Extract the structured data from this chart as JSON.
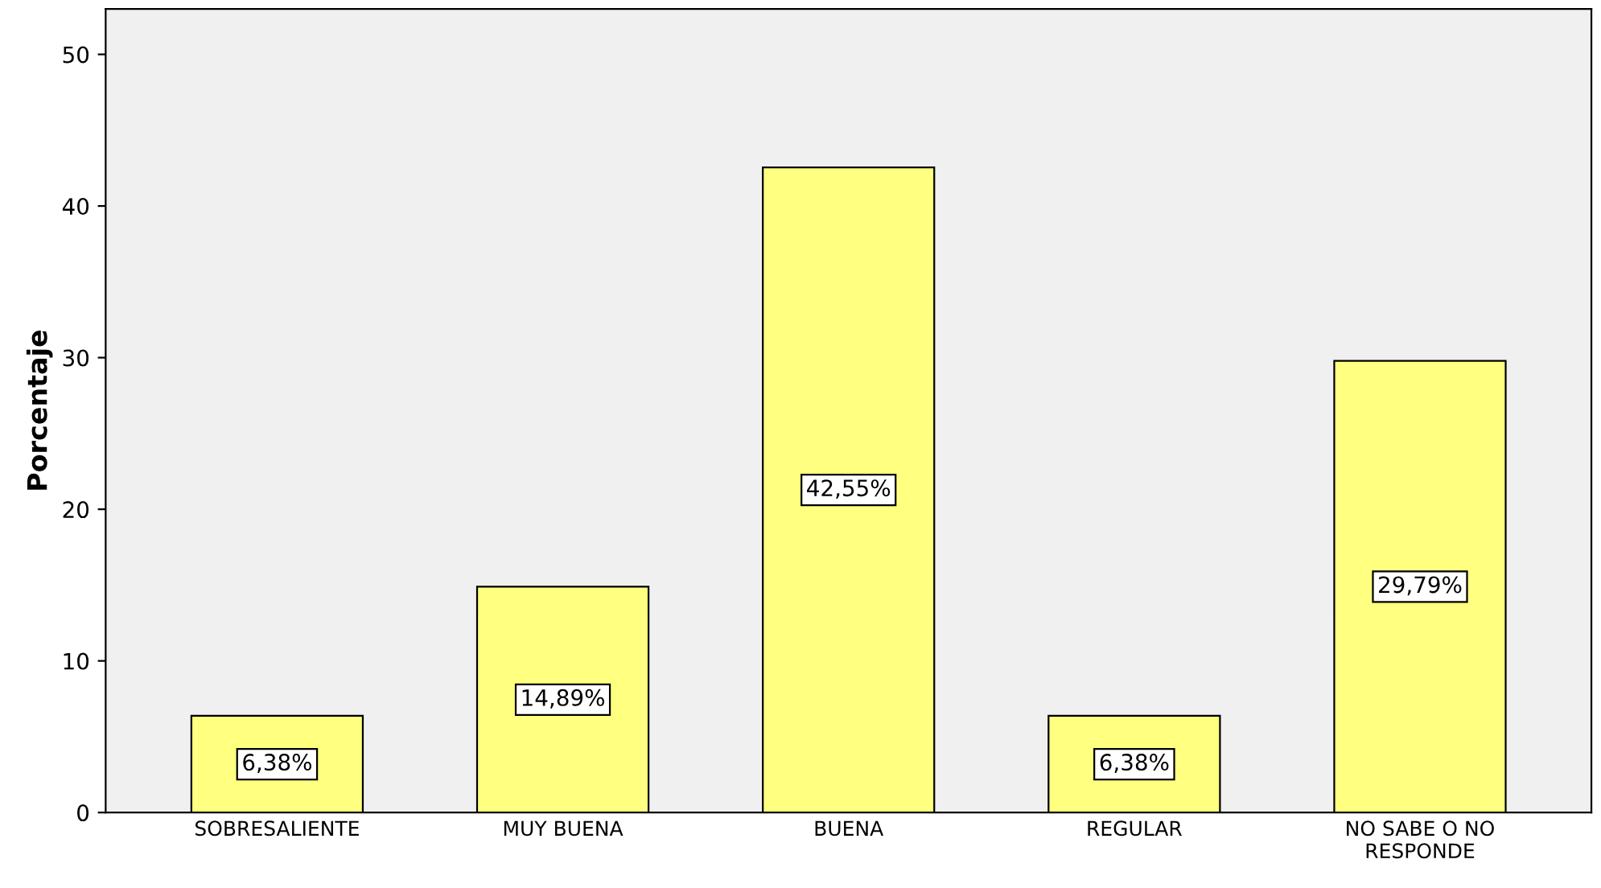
{
  "chart_data": {
    "type": "bar",
    "ylabel": "Porcentaje",
    "categories": [
      "SOBRESALIENTE",
      "MUY BUENA",
      "BUENA",
      "REGULAR",
      "NO SABE O NO\nRESPONDE"
    ],
    "values": [
      6.38,
      14.89,
      42.55,
      6.38,
      29.79
    ],
    "value_labels": [
      "6,38%",
      "14,89%",
      "42,55%",
      "6,38%",
      "29,79%"
    ],
    "color": "#ffff80",
    "ylim": [
      0,
      53
    ],
    "yticks": [
      0,
      10,
      20,
      30,
      40,
      50
    ],
    "grid": false
  }
}
